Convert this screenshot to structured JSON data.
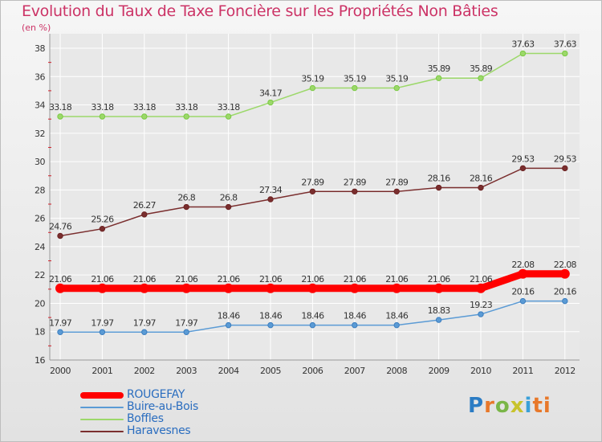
{
  "header": {
    "title": "Evolution du Taux de Taxe Foncière sur les Propriétés Non Bâties",
    "unit": "(en %)"
  },
  "logo": {
    "text": "Proxiti"
  },
  "chart_data": {
    "type": "line",
    "title": "Evolution du Taux de Taxe Foncière sur les Propriétés Non Bâties",
    "ylabel": "(en %)",
    "xlabel": "",
    "categories": [
      "2000",
      "2001",
      "2002",
      "2003",
      "2004",
      "2005",
      "2006",
      "2007",
      "2008",
      "2009",
      "2010",
      "2011",
      "2012"
    ],
    "ylim": [
      16,
      38
    ],
    "yticks": [
      16,
      18,
      20,
      22,
      24,
      26,
      28,
      30,
      32,
      34,
      36,
      38
    ],
    "grid": true,
    "legend_position": "bottom-left",
    "series": [
      {
        "name": "ROUGEFAY",
        "color": "#ff0000",
        "highlight": true,
        "values": [
          21.06,
          21.06,
          21.06,
          21.06,
          21.06,
          21.06,
          21.06,
          21.06,
          21.06,
          21.06,
          21.06,
          22.08,
          22.08
        ],
        "labels": [
          "21.06",
          "21.06",
          "21.06",
          "21.06",
          "21.06",
          "21.06",
          "21.06",
          "21.06",
          "21.06",
          "21.06",
          "21.06",
          "22.08",
          "22.08"
        ]
      },
      {
        "name": "Buire-au-Bois",
        "color": "#5b9bd5",
        "marker": "#3c7ebf",
        "values": [
          17.97,
          17.97,
          17.97,
          17.97,
          18.46,
          18.46,
          18.46,
          18.46,
          18.46,
          18.83,
          19.23,
          20.16,
          20.16
        ],
        "labels": [
          "17.97",
          "17.97",
          "17.97",
          "17.97",
          "18.46",
          "18.46",
          "18.46",
          "18.46",
          "18.46",
          "18.83",
          "19.23",
          "20.16",
          "20.16"
        ]
      },
      {
        "name": "Boffles",
        "color": "#9cd86a",
        "marker": "#7ac943",
        "values": [
          33.18,
          33.18,
          33.18,
          33.18,
          33.18,
          34.17,
          35.19,
          35.19,
          35.19,
          35.89,
          35.89,
          37.63,
          37.63
        ],
        "labels": [
          "33.18",
          "33.18",
          "33.18",
          "33.18",
          "33.18",
          "34.17",
          "35.19",
          "35.19",
          "35.19",
          "35.89",
          "35.89",
          "37.63",
          "37.63"
        ]
      },
      {
        "name": "Haravesnes",
        "color": "#7a2e2e",
        "marker": "#6b2222",
        "values": [
          24.76,
          25.26,
          26.27,
          26.8,
          26.8,
          27.34,
          27.89,
          27.89,
          27.89,
          28.16,
          28.16,
          29.53,
          29.53
        ],
        "labels": [
          "24.76",
          "25.26",
          "26.27",
          "26.8",
          "26.8",
          "27.34",
          "27.89",
          "27.89",
          "27.89",
          "28.16",
          "28.16",
          "29.53",
          "29.53"
        ]
      }
    ]
  },
  "colors": {
    "title": "#cc3366",
    "axis_text": "#333333",
    "legend_text": "#2a6dbf",
    "grid": "#ffffff"
  }
}
